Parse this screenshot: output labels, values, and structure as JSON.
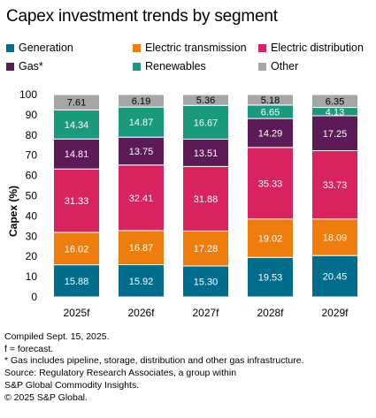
{
  "chart_data": {
    "type": "bar",
    "stacked": true,
    "title": "Capex investment trends by segment",
    "ylabel": "Capex (%)",
    "xlabel": "",
    "ylim": [
      0,
      100
    ],
    "yticks": [
      0,
      10,
      20,
      30,
      40,
      50,
      60,
      70,
      80,
      90,
      100
    ],
    "grid": false,
    "legend_position": "top",
    "categories": [
      "2025f",
      "2026f",
      "2027f",
      "2028f",
      "2029f"
    ],
    "series": [
      {
        "name": "Generation",
        "color": "#006d8c",
        "values": [
          15.88,
          15.92,
          15.3,
          19.53,
          20.45
        ]
      },
      {
        "name": "Electric transmission",
        "color": "#ee7d0e",
        "values": [
          16.02,
          16.87,
          17.28,
          19.02,
          18.09
        ]
      },
      {
        "name": "Electric distribution",
        "color": "#d8235e",
        "values": [
          31.33,
          32.41,
          31.88,
          35.33,
          33.73
        ]
      },
      {
        "name": "Gas*",
        "color": "#5c1a57",
        "values": [
          14.81,
          13.75,
          13.51,
          14.29,
          17.25
        ]
      },
      {
        "name": "Renewables",
        "color": "#1a9a7c",
        "values": [
          14.34,
          14.87,
          16.67,
          6.65,
          4.13
        ]
      },
      {
        "name": "Other",
        "color": "#a6a6a6",
        "values": [
          7.61,
          6.19,
          5.36,
          5.18,
          6.35
        ]
      }
    ],
    "data_labels": [
      [
        "15.88",
        "15.92",
        "15.30",
        "19.53",
        "20.45"
      ],
      [
        "16.02",
        "16.87",
        "17.28",
        "19.02",
        "18.09"
      ],
      [
        "31.33",
        "32.41",
        "31.88",
        "35.33",
        "33.73"
      ],
      [
        "14.81",
        "13.75",
        "13.51",
        "14.29",
        "17.25"
      ],
      [
        "14.34",
        "14.87",
        "16.67",
        "6.65",
        "4.13"
      ],
      [
        "7.61",
        "6.19",
        "5.36",
        "5.18",
        "6.35"
      ]
    ]
  },
  "notes": [
    "Compiled Sept. 15, 2025.",
    "f = forecast.",
    "* Gas includes pipeline, storage, distribution and other gas infrastructure.",
    "Source: Regulatory Research Associates, a group within",
    "S&P Global Commodity Insights.",
    "© 2025 S&P Global."
  ]
}
